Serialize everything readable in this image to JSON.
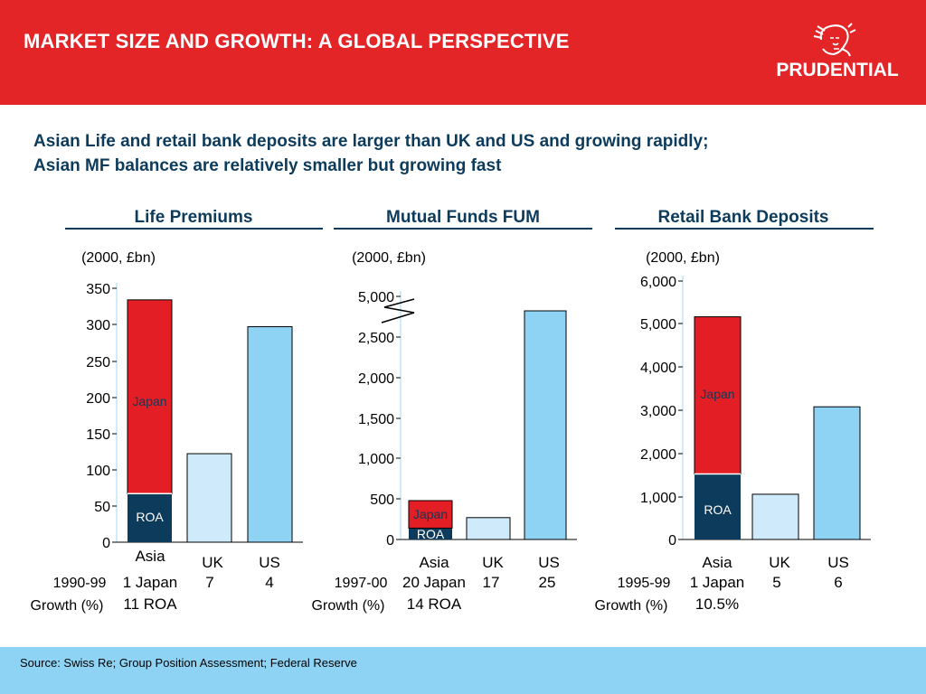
{
  "header": {
    "title": "MARKET SIZE AND GROWTH: A GLOBAL PERSPECTIVE",
    "logo_text": "PRUDENTIAL",
    "logo_icon": "prudence-head-icon"
  },
  "subtitle": {
    "line1": "Asian Life and retail bank deposits are larger than UK and US and growing rapidly;",
    "line2": "Asian MF balances are relatively smaller but growing fast"
  },
  "footer": {
    "source": "Source: Swiss Re; Group Position Assessment; Federal Reserve"
  },
  "colors": {
    "header_red": "#e42528",
    "japan_red": "#e31e24",
    "roa_navy": "#0d3b5c",
    "uk_light_blue": "#cfeafb",
    "us_blue": "#8fd3f4",
    "footer_blue": "#8fd3f4",
    "subtitle_navy": "#0d3b5c"
  },
  "chart_data": [
    {
      "type": "bar",
      "title": "Life Premiums",
      "units": "(2000, £bn)",
      "categories": [
        "Asia",
        "UK",
        "US"
      ],
      "series": [
        {
          "name": "ROA",
          "values": [
            67,
            0,
            0
          ]
        },
        {
          "name": "Japan",
          "values": [
            267,
            0,
            0
          ]
        },
        {
          "name": "UK",
          "values": [
            0,
            122,
            0
          ]
        },
        {
          "name": "US",
          "values": [
            0,
            0,
            297
          ]
        }
      ],
      "yticks": [
        "0",
        "50",
        "100",
        "150",
        "200",
        "250",
        "300",
        "350"
      ],
      "ylim": [
        0,
        350
      ],
      "growth": {
        "label_line1": "1990-99",
        "label_line2": "Growth (%)",
        "values": [
          [
            "1 Japan",
            "11 ROA"
          ],
          [
            "7"
          ],
          [
            "4"
          ]
        ]
      }
    },
    {
      "type": "bar",
      "title": "Mutual Funds FUM",
      "units": "(2000, £bn)",
      "categories": [
        "Asia",
        "UK",
        "US"
      ],
      "series": [
        {
          "name": "ROA",
          "values": [
            140,
            0,
            0
          ]
        },
        {
          "name": "Japan",
          "values": [
            340,
            0,
            0
          ]
        },
        {
          "name": "UK",
          "values": [
            270,
            0,
            0
          ]
        },
        {
          "name": "US",
          "values": [
            0,
            0,
            4700
          ]
        }
      ],
      "yticks": [
        "0",
        "500",
        "1,000",
        "1,500",
        "2,000",
        "2,500",
        "5,000"
      ],
      "ylim": [
        0,
        5000
      ],
      "axis_break": true,
      "growth": {
        "label_line1": "1997-00",
        "label_line2": "Growth (%)",
        "values": [
          [
            "20 Japan",
            "14 ROA"
          ],
          [
            "17"
          ],
          [
            "25"
          ]
        ]
      }
    },
    {
      "type": "bar",
      "title": "Retail Bank Deposits",
      "units": "(2000, £bn)",
      "categories": [
        "Asia",
        "UK",
        "US"
      ],
      "series": [
        {
          "name": "ROA",
          "values": [
            1520,
            0,
            0
          ]
        },
        {
          "name": "Japan",
          "values": [
            3650,
            0,
            0
          ]
        },
        {
          "name": "UK",
          "values": [
            0,
            1050,
            0
          ]
        },
        {
          "name": "US",
          "values": [
            0,
            0,
            3080
          ]
        }
      ],
      "yticks": [
        "0",
        "1,000",
        "2,000",
        "3,000",
        "4,000",
        "5,000",
        "6,000"
      ],
      "ylim": [
        0,
        6000
      ],
      "growth": {
        "label_line1": "1995-99",
        "label_line2": "Growth (%)",
        "values": [
          [
            "1 Japan",
            "10.5%"
          ],
          [
            "5"
          ],
          [
            "6"
          ]
        ]
      }
    }
  ]
}
